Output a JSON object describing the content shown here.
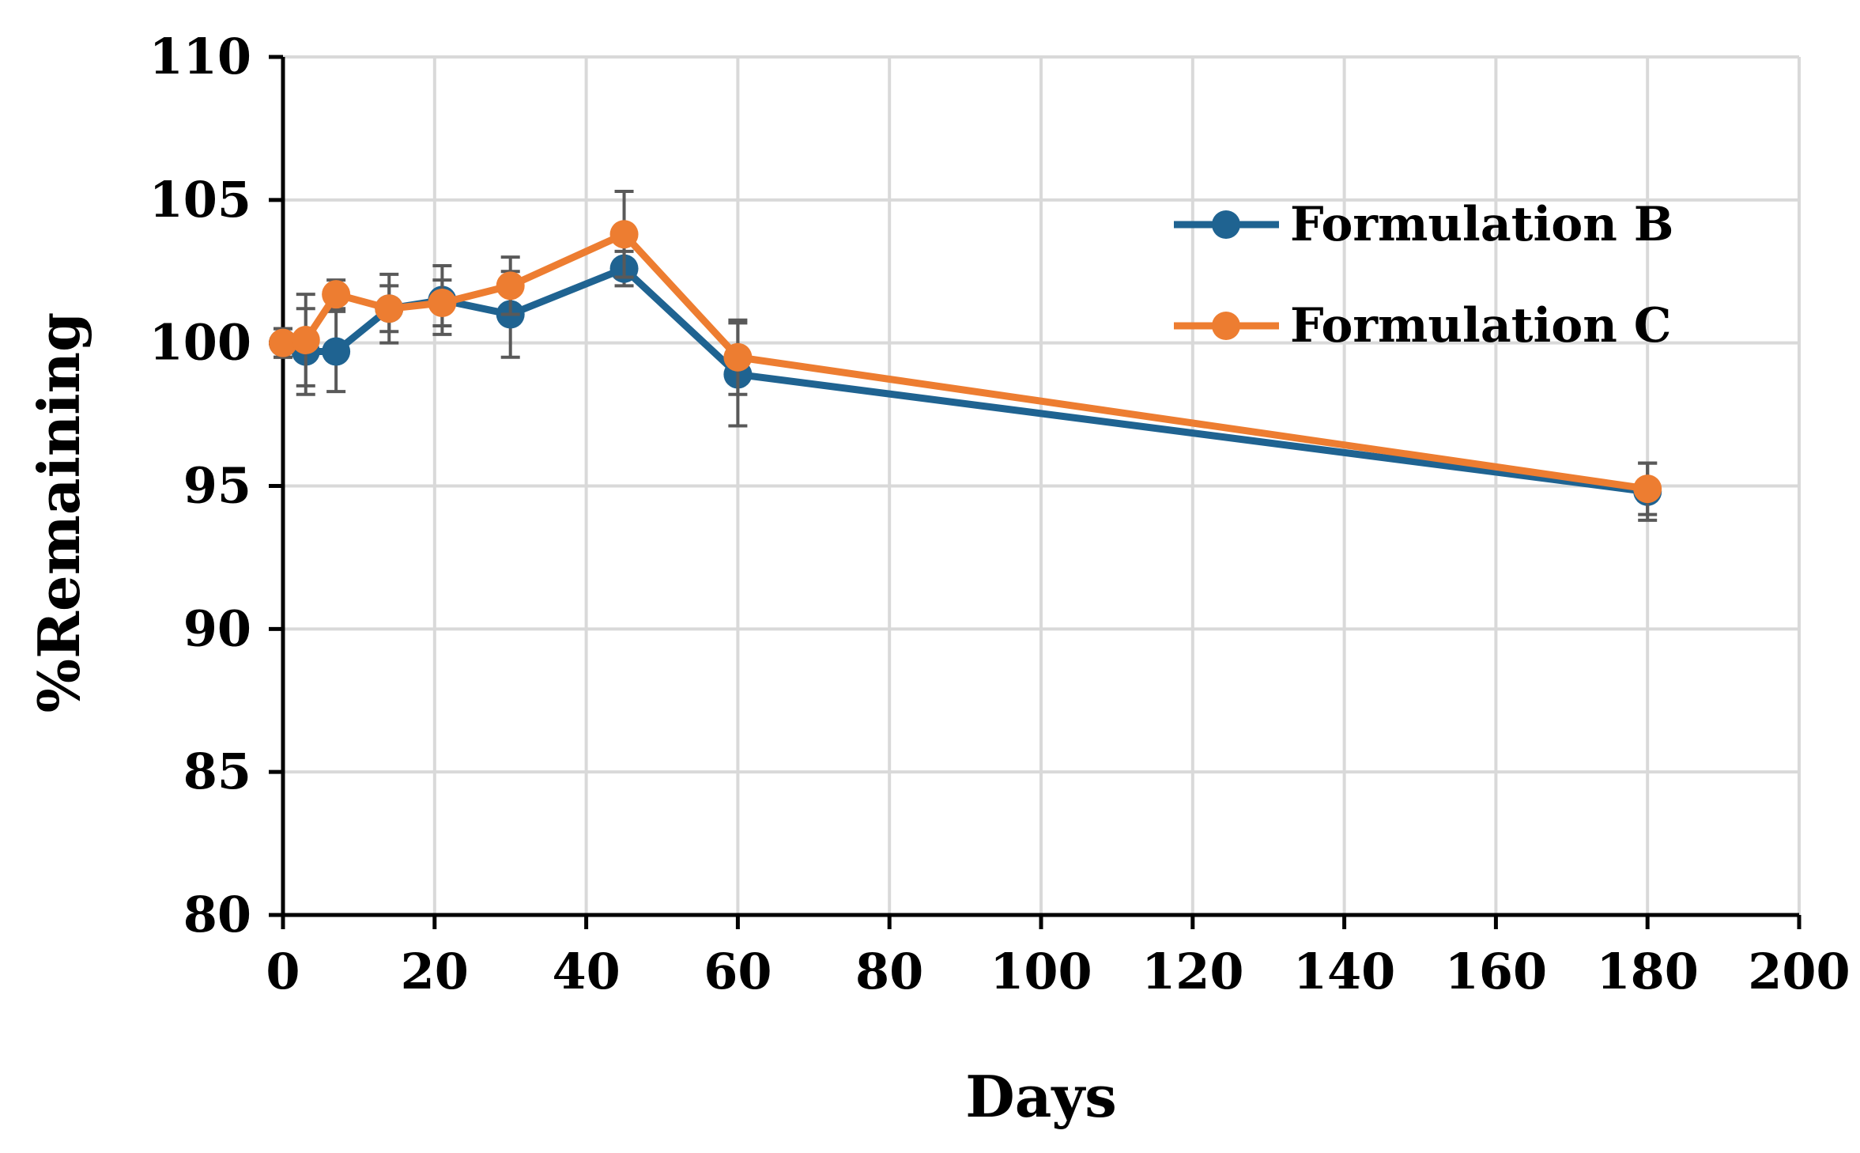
{
  "chart_data": {
    "type": "line",
    "title": "",
    "xlabel": "Days",
    "ylabel": "%Remaining",
    "xlim": [
      0,
      200
    ],
    "ylim": [
      80,
      110
    ],
    "xticks": [
      "0",
      "20",
      "40",
      "60",
      "80",
      "100",
      "120",
      "140",
      "160",
      "180",
      "200"
    ],
    "yticks": [
      "80",
      "85",
      "90",
      "95",
      "100",
      "105",
      "110"
    ],
    "grid": true,
    "legend_position": "top-right",
    "series": [
      {
        "name": "Formulation B",
        "color": "#1f6391",
        "x": [
          0,
          3,
          7,
          14,
          21,
          30,
          45,
          60,
          180
        ],
        "y": [
          100.0,
          99.7,
          99.7,
          101.2,
          101.5,
          101.0,
          102.6,
          98.9,
          94.8
        ],
        "err": [
          0.5,
          1.5,
          1.4,
          1.2,
          1.2,
          1.5,
          0.6,
          1.8,
          1.0
        ]
      },
      {
        "name": "Formulation C",
        "color": "#ed7d31",
        "x": [
          0,
          3,
          7,
          14,
          21,
          30,
          45,
          60,
          180
        ],
        "y": [
          100.0,
          100.1,
          101.7,
          101.2,
          101.4,
          102.0,
          103.8,
          99.5,
          94.9
        ],
        "err": [
          0.5,
          1.6,
          0.5,
          0.8,
          0.8,
          1.0,
          1.5,
          1.3,
          0.9
        ]
      }
    ]
  }
}
